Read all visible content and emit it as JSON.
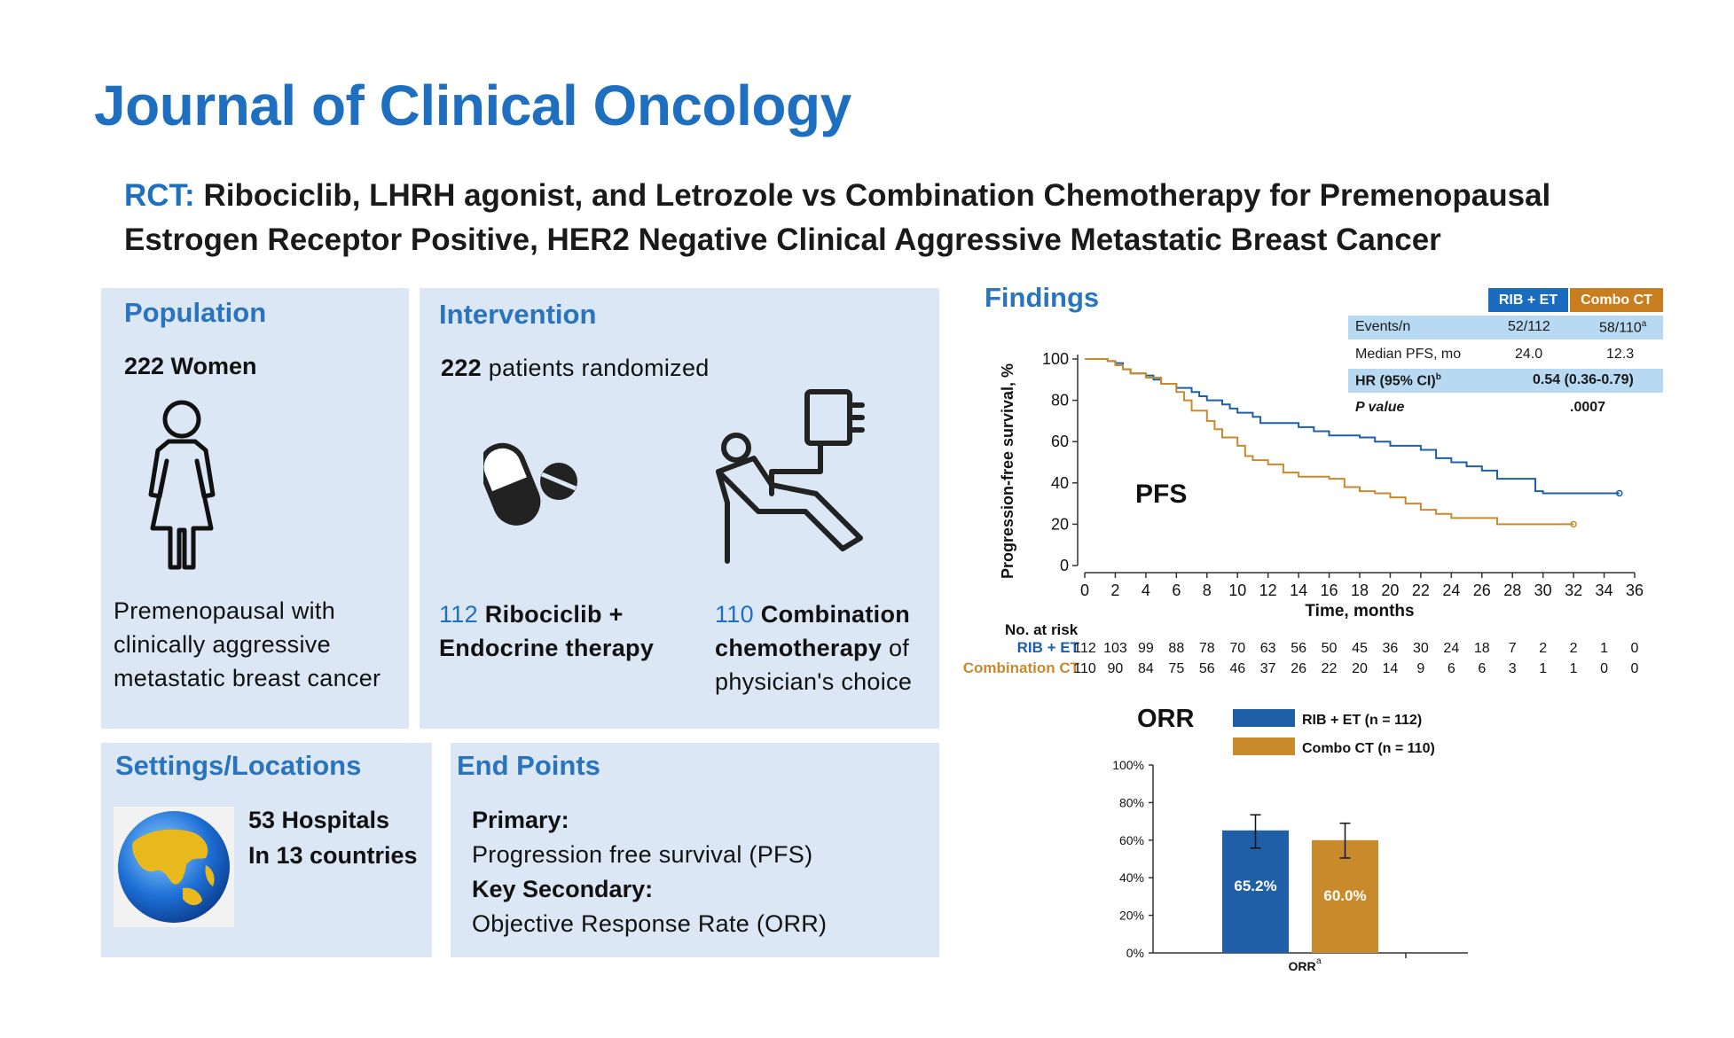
{
  "header": {
    "journal": "Journal of Clinical Oncology",
    "rct_label": "RCT:",
    "rct_title": "Ribociclib, LHRH agonist, and Letrozole vs Combination Chemotherapy for Premenopausal Estrogen Receptor Positive, HER2 Negative Clinical Aggressive Metastatic Breast Cancer"
  },
  "population": {
    "title": "Population",
    "count": "222 Women",
    "description": "Premenopausal with clinically aggressive metastatic breast cancer"
  },
  "intervention": {
    "title": "Intervention",
    "randomized_number": "222",
    "randomized_text": "patients randomized",
    "arm1_number": "112",
    "arm1_text": "Ribociclib + Endocrine therapy",
    "arm2_number": "110",
    "arm2_text": "Combination chemotherapy",
    "arm2_suffix": "of physician's choice"
  },
  "settings": {
    "title": "Settings/Locations",
    "line1": "53 Hospitals",
    "line2": "In 13 countries"
  },
  "endpoints": {
    "title": "End Points",
    "primary_label": "Primary:",
    "primary_value": "Progression free survival (PFS)",
    "secondary_label": "Key Secondary:",
    "secondary_value": "Objective Response Rate (ORR)"
  },
  "findings": {
    "title": "Findings",
    "table": {
      "col1": "RIB + ET",
      "col2": "Combo CT",
      "row1_label": "Events/n",
      "row1_v1": "52/112",
      "row1_v2": "58/110",
      "row1_v2_sup": "a",
      "row2_label": "Median PFS, mo",
      "row2_v1": "24.0",
      "row2_v2": "12.3",
      "row3_label": "HR (95% CI)",
      "row3_sup": "b",
      "row3_value": "0.54 (0.36-0.79)",
      "row4_label": "P value",
      "row4_value": ".0007"
    },
    "colors": {
      "rib": "#1f5fa8",
      "combo": "#c98a2c",
      "table_rib": "#1a6cc1",
      "table_combo": "#c87d1f",
      "table_row": "#b8d9f2"
    }
  },
  "chart_data": [
    {
      "type": "line",
      "title": "PFS",
      "xlabel": "Time, months",
      "ylabel": "Progression-free survival, %",
      "xlim": [
        0,
        36
      ],
      "ylim": [
        0,
        100
      ],
      "x_ticks": [
        0,
        2,
        4,
        6,
        8,
        10,
        12,
        14,
        16,
        18,
        20,
        22,
        24,
        26,
        28,
        30,
        32,
        34,
        36
      ],
      "y_ticks": [
        0,
        20,
        40,
        60,
        80,
        100
      ],
      "series": [
        {
          "name": "RIB + ET",
          "points": [
            [
              0,
              100
            ],
            [
              1,
              100
            ],
            [
              1.5,
              99
            ],
            [
              2,
              98
            ],
            [
              2.5,
              95
            ],
            [
              3,
              93
            ],
            [
              4,
              92
            ],
            [
              4.5,
              90
            ],
            [
              5,
              88
            ],
            [
              6,
              86
            ],
            [
              7,
              84
            ],
            [
              7.5,
              82
            ],
            [
              8,
              80
            ],
            [
              9,
              78
            ],
            [
              9.5,
              76
            ],
            [
              10,
              74
            ],
            [
              11,
              72
            ],
            [
              11.5,
              69
            ],
            [
              13,
              69
            ],
            [
              14,
              67
            ],
            [
              15,
              65
            ],
            [
              16,
              63
            ],
            [
              18,
              62
            ],
            [
              19,
              60
            ],
            [
              20,
              58
            ],
            [
              22,
              56
            ],
            [
              23,
              52
            ],
            [
              24,
              50
            ],
            [
              25,
              48
            ],
            [
              26,
              46
            ],
            [
              27,
              42
            ],
            [
              29,
              42
            ],
            [
              29.5,
              36
            ],
            [
              30,
              35
            ],
            [
              35,
              35
            ]
          ]
        },
        {
          "name": "Combination CT",
          "points": [
            [
              0,
              100
            ],
            [
              1,
              100
            ],
            [
              1.5,
              99
            ],
            [
              2,
              97
            ],
            [
              2.5,
              95
            ],
            [
              3,
              93
            ],
            [
              4,
              91
            ],
            [
              5,
              88
            ],
            [
              6,
              84
            ],
            [
              6.5,
              80
            ],
            [
              7,
              75
            ],
            [
              8,
              70
            ],
            [
              8.5,
              66
            ],
            [
              9,
              62
            ],
            [
              10,
              58
            ],
            [
              10.5,
              53
            ],
            [
              11,
              51
            ],
            [
              12,
              49
            ],
            [
              13,
              45
            ],
            [
              14,
              43
            ],
            [
              16,
              42
            ],
            [
              17,
              38
            ],
            [
              18,
              36
            ],
            [
              19,
              35
            ],
            [
              20,
              33
            ],
            [
              21,
              30
            ],
            [
              22,
              27
            ],
            [
              23,
              25
            ],
            [
              24,
              23
            ],
            [
              25,
              23
            ],
            [
              27,
              20
            ],
            [
              30,
              20
            ],
            [
              32,
              20
            ]
          ]
        }
      ],
      "risk_table": {
        "label": "No. at risk",
        "rows": [
          {
            "name": "RIB + ET",
            "values": [
              "112",
              "103",
              "99",
              "88",
              "78",
              "70",
              "63",
              "56",
              "50",
              "45",
              "36",
              "30",
              "24",
              "18",
              "7",
              "2",
              "2",
              "1",
              "0"
            ]
          },
          {
            "name": "Combination CT",
            "values": [
              "110",
              "90",
              "84",
              "75",
              "56",
              "46",
              "37",
              "26",
              "22",
              "20",
              "14",
              "9",
              "6",
              "6",
              "3",
              "1",
              "1",
              "0",
              "0"
            ]
          }
        ]
      }
    },
    {
      "type": "bar",
      "title": "ORR",
      "categories": [
        "ORR"
      ],
      "category_sup": "a",
      "ylim": [
        0,
        100
      ],
      "y_ticks": [
        "0%",
        "20%",
        "40%",
        "60%",
        "80%",
        "100%"
      ],
      "series": [
        {
          "name": "RIB + ET (n = 112)",
          "value": 65.2,
          "label": "65.2%",
          "err_low": 55.8,
          "err_high": 73.5
        },
        {
          "name": "Combo CT (n = 110)",
          "value": 60.0,
          "label": "60.0%",
          "err_low": 50.5,
          "err_high": 69.0
        }
      ]
    }
  ]
}
